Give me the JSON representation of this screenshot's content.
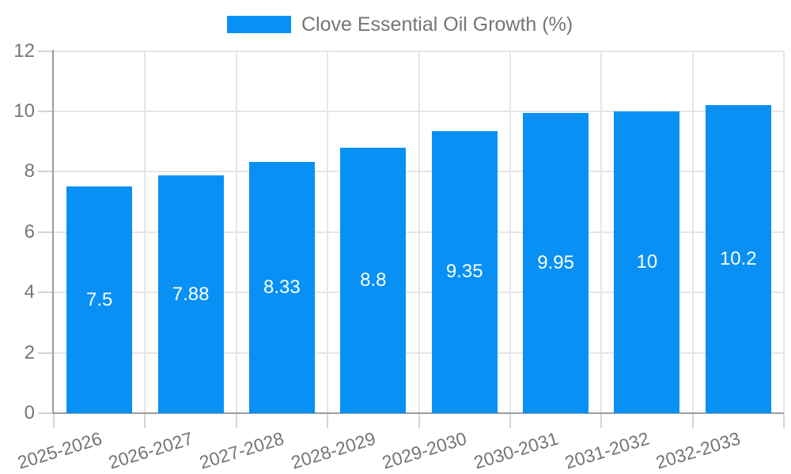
{
  "legend": {
    "label": "Clove Essential Oil Growth (%)"
  },
  "colors": {
    "bar": "#0890f5",
    "axis": "#9b9b9b",
    "grid": "#e6e6e6",
    "tick": "#d4d4d4",
    "text": "#757575",
    "value_label": "#ffffff",
    "background": "#ffffff"
  },
  "chart_data": {
    "type": "bar",
    "title": "",
    "xlabel": "",
    "ylabel": "",
    "categories": [
      "2025-2026",
      "2026-2027",
      "2027-2028",
      "2028-2029",
      "2029-2030",
      "2030-2031",
      "2031-2032",
      "2032-2033"
    ],
    "series": [
      {
        "name": "Clove Essential Oil Growth (%)",
        "values": [
          7.5,
          7.88,
          8.33,
          8.8,
          9.35,
          9.95,
          10,
          10.2
        ]
      }
    ],
    "value_labels": [
      "7.5",
      "7.88",
      "8.33",
      "8.8",
      "9.35",
      "9.95",
      "10",
      "10.2"
    ],
    "ylim": [
      0,
      12
    ],
    "yticks": [
      0,
      2,
      4,
      6,
      8,
      10,
      12
    ],
    "grid": true,
    "legend_position": "top",
    "x_label_rotation_deg": -17
  }
}
